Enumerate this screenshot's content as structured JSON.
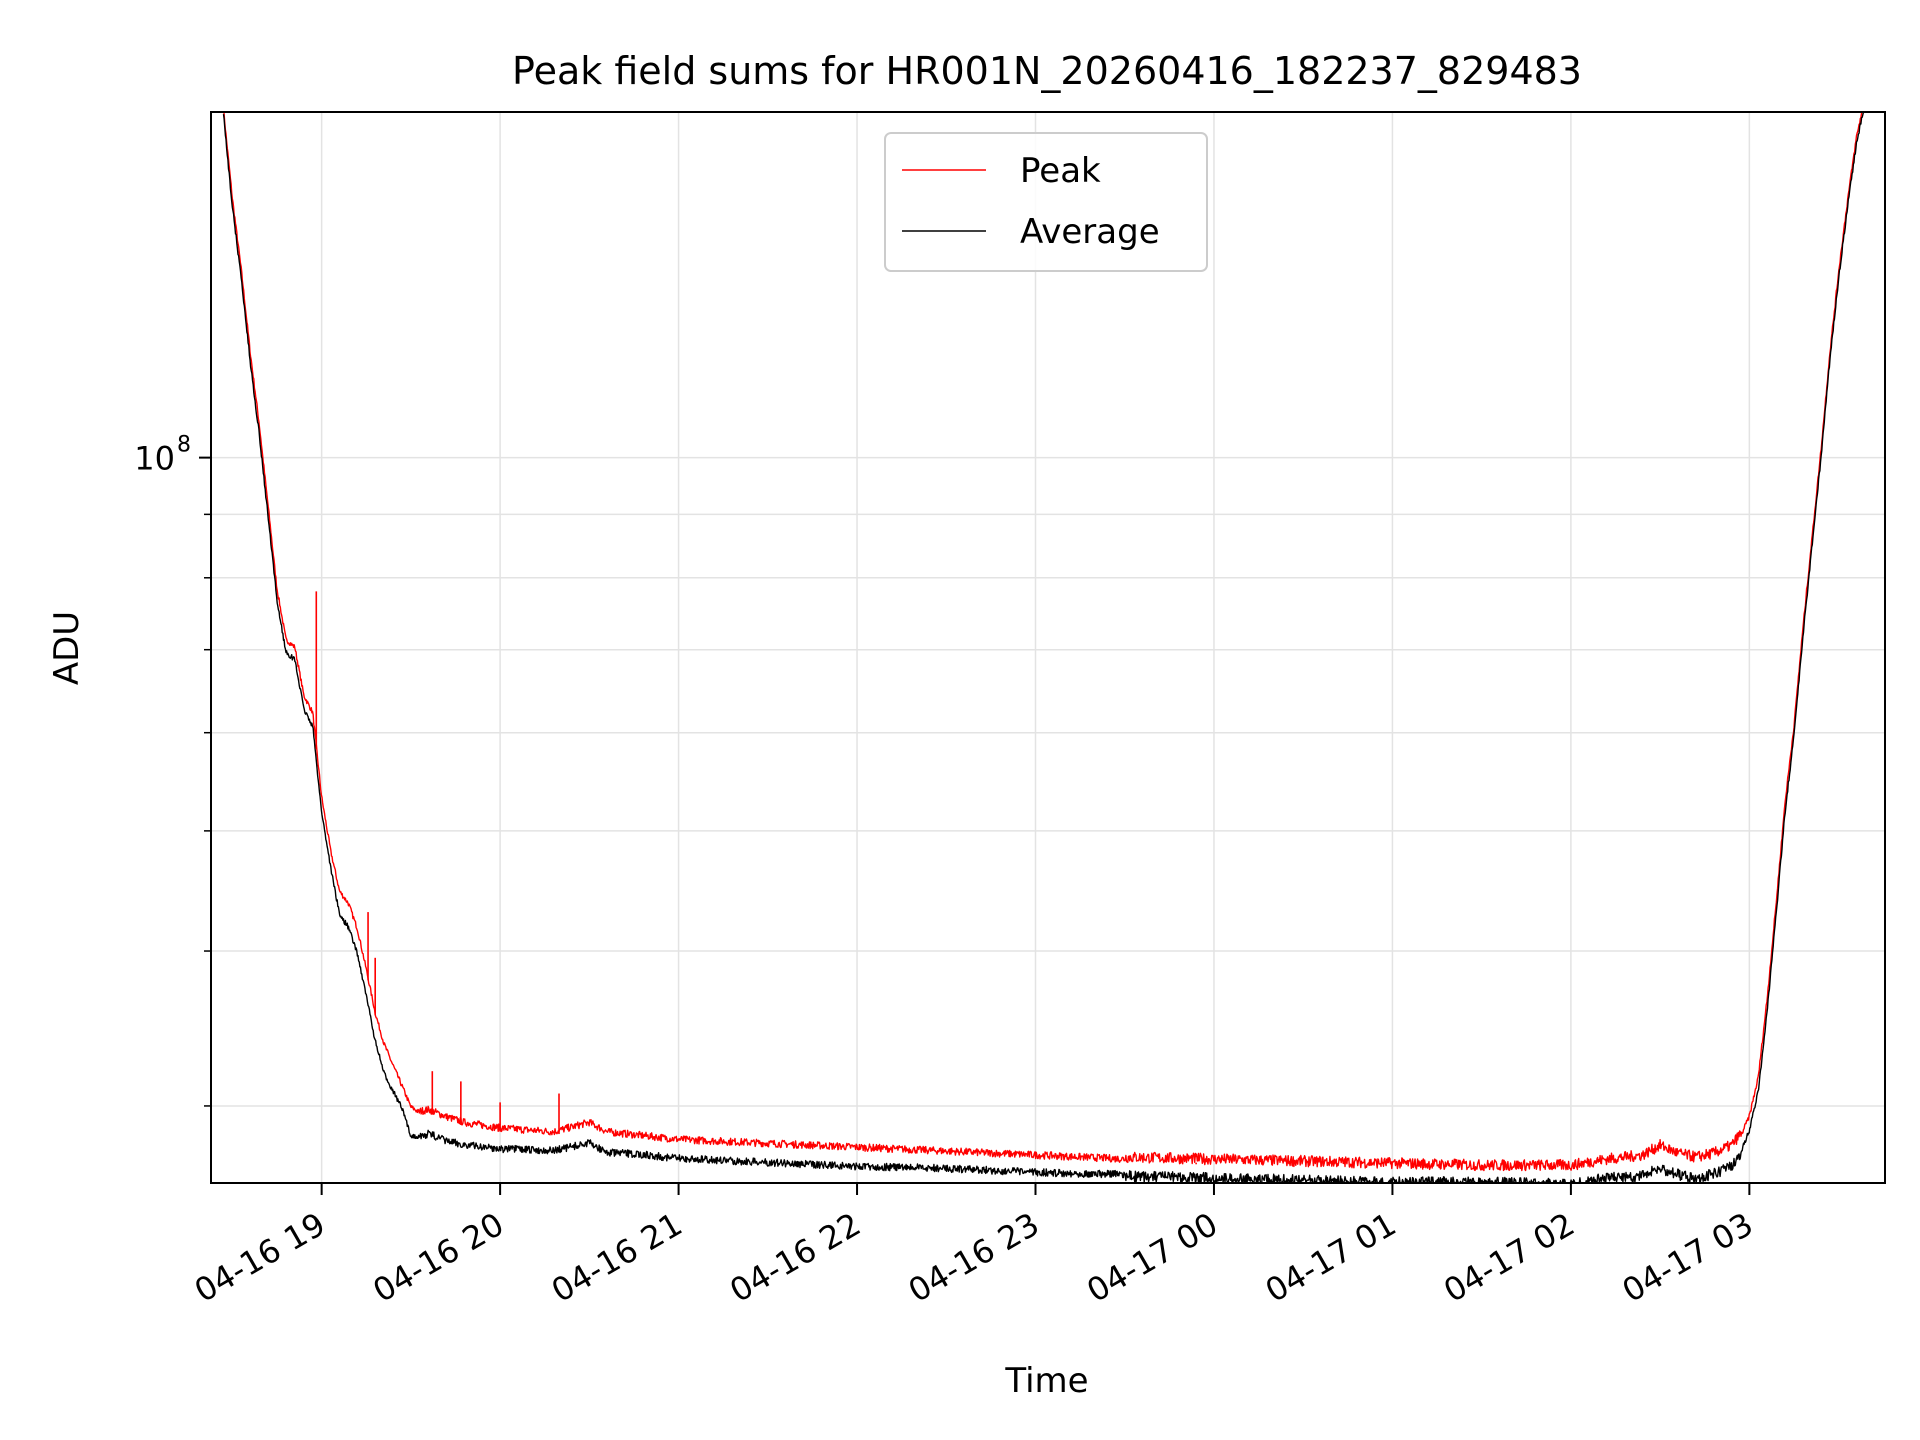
{
  "chart_data": {
    "type": "line",
    "title": "Peak field sums for HR001N_20260416_182237_829483",
    "xlabel": "Time",
    "ylabel": "ADU",
    "yscale": "log",
    "ylim": [
      26000000,
      190000000
    ],
    "xlim_hours": [
      18.38,
      27.76
    ],
    "x_ticks": [
      {
        "label": "04-16 19",
        "hour": 19
      },
      {
        "label": "04-16 20",
        "hour": 20
      },
      {
        "label": "04-16 21",
        "hour": 21
      },
      {
        "label": "04-16 22",
        "hour": 22
      },
      {
        "label": "04-16 23",
        "hour": 23
      },
      {
        "label": "04-17 00",
        "hour": 24
      },
      {
        "label": "04-17 01",
        "hour": 25
      },
      {
        "label": "04-17 02",
        "hour": 26
      },
      {
        "label": "04-17 03",
        "hour": 27
      }
    ],
    "y_major_ticks": [
      {
        "base": "10",
        "exp": "8",
        "value": 100000000
      }
    ],
    "y_minor_ticks": [
      30000000,
      40000000,
      50000000,
      60000000,
      70000000,
      80000000,
      90000000,
      200000000
    ],
    "grid": true,
    "legend": {
      "position": "upper center",
      "entries": [
        {
          "label": "Peak",
          "color": "#ff0000"
        },
        {
          "label": "Average",
          "color": "#000000"
        }
      ]
    },
    "series": [
      {
        "name": "Average",
        "color": "#000000",
        "x_hours": [
          18.45,
          18.5,
          18.55,
          18.6,
          18.65,
          18.7,
          18.75,
          18.8,
          18.85,
          18.9,
          18.95,
          19.0,
          19.05,
          19.1,
          19.15,
          19.2,
          19.25,
          19.3,
          19.35,
          19.4,
          19.45,
          19.5,
          19.55,
          19.6,
          19.7,
          19.8,
          20.0,
          20.3,
          20.5,
          20.6,
          20.8,
          21.0,
          21.5,
          22.0,
          22.5,
          23.0,
          23.5,
          24.0,
          24.5,
          25.0,
          25.5,
          26.0,
          26.2,
          26.4,
          26.5,
          26.6,
          26.7,
          26.8,
          26.9,
          26.95,
          27.0,
          27.05,
          27.1,
          27.15,
          27.2,
          27.25,
          27.3,
          27.35,
          27.4,
          27.45,
          27.5,
          27.55,
          27.6,
          27.65
        ],
        "values": [
          190000000,
          160000000,
          140000000,
          120000000,
          105000000,
          90000000,
          77000000,
          70000000,
          69000000,
          63000000,
          61000000,
          52000000,
          47000000,
          43000000,
          42000000,
          40000000,
          37000000,
          34000000,
          32000000,
          31000000,
          30000000,
          28500000,
          28500000,
          28700000,
          28300000,
          28100000,
          27900000,
          27800000,
          28200000,
          27700000,
          27600000,
          27400000,
          27200000,
          27000000,
          26900000,
          26700000,
          26600000,
          26500000,
          26400000,
          26300000,
          26300000,
          26200000,
          26500000,
          26600000,
          27000000,
          26700000,
          26500000,
          26700000,
          27100000,
          27600000,
          28800000,
          31000000,
          36000000,
          43000000,
          52000000,
          60000000,
          72000000,
          85000000,
          100000000,
          120000000,
          140000000,
          160000000,
          180000000,
          195000000
        ]
      },
      {
        "name": "Peak",
        "color": "#ff0000",
        "x_hours": [
          18.45,
          18.5,
          18.55,
          18.6,
          18.65,
          18.7,
          18.75,
          18.8,
          18.85,
          18.9,
          18.95,
          19.0,
          19.05,
          19.1,
          19.15,
          19.2,
          19.25,
          19.3,
          19.35,
          19.4,
          19.45,
          19.5,
          19.55,
          19.6,
          19.7,
          19.8,
          20.0,
          20.3,
          20.5,
          20.6,
          20.8,
          21.0,
          21.5,
          22.0,
          22.5,
          23.0,
          23.5,
          24.0,
          24.5,
          25.0,
          25.5,
          26.0,
          26.2,
          26.4,
          26.5,
          26.6,
          26.7,
          26.8,
          26.9,
          26.95,
          27.0,
          27.05,
          27.1,
          27.15,
          27.2,
          27.25,
          27.3,
          27.35,
          27.4,
          27.45,
          27.5,
          27.55,
          27.6,
          27.65
        ],
        "values": [
          190000000,
          161000000,
          141000000,
          121000000,
          106000000,
          91000000,
          78000000,
          71000000,
          70000000,
          64000000,
          62000000,
          53000000,
          48000000,
          44500000,
          43500000,
          41500000,
          38500000,
          35500000,
          33500000,
          32200000,
          31000000,
          29800000,
          29500000,
          29600000,
          29200000,
          28900000,
          28600000,
          28400000,
          28900000,
          28400000,
          28200000,
          28000000,
          27800000,
          27600000,
          27400000,
          27200000,
          27000000,
          26900000,
          26800000,
          26700000,
          26600000,
          26600000,
          26900000,
          27100000,
          27600000,
          27200000,
          27000000,
          27200000,
          27600000,
          28200000,
          29300000,
          31500000,
          36500000,
          43500000,
          52500000,
          60500000,
          72500000,
          85500000,
          100500000,
          120500000,
          140500000,
          160500000,
          180500000,
          195000000
        ]
      }
    ],
    "spikes_peak": [
      {
        "hour": 18.97,
        "value": 78000000
      },
      {
        "hour": 19.26,
        "value": 43000000
      },
      {
        "hour": 19.3,
        "value": 39500000
      },
      {
        "hour": 19.62,
        "value": 32000000
      },
      {
        "hour": 19.78,
        "value": 31400000
      },
      {
        "hour": 20.0,
        "value": 30200000
      },
      {
        "hour": 20.33,
        "value": 30700000
      },
      {
        "hour": 23.9,
        "value": 27000000
      }
    ]
  }
}
